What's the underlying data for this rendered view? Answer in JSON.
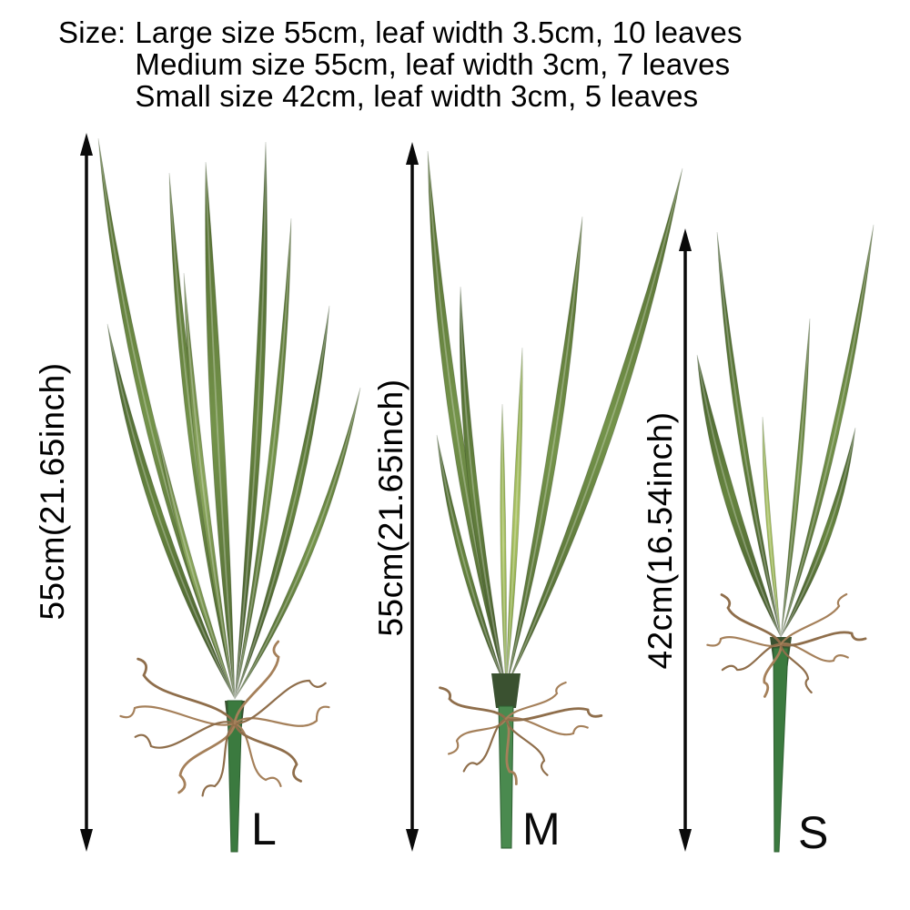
{
  "header": {
    "prefix": "Size:",
    "lines": [
      "Large size 55cm, leaf width 3.5cm, 10 leaves",
      "Medium size 55cm, leaf width 3cm, 7 leaves",
      "Small size 42cm, leaf width 3cm, 5 leaves"
    ]
  },
  "measurements": {
    "large": "55cm(21.65inch)",
    "medium": "55cm(21.65inch)",
    "small": "42cm(16.54inch)"
  },
  "plants": {
    "large": {
      "label": "L",
      "size_cm": "55cm",
      "size_inch": "21.65inch",
      "leaf_width": "3.5cm",
      "leaf_count": "10 leaves"
    },
    "medium": {
      "label": "M",
      "size_cm": "55cm",
      "size_inch": "21.65inch",
      "leaf_width": "3cm",
      "leaf_count": "7 leaves"
    },
    "small": {
      "label": "S",
      "size_cm": "42cm",
      "size_inch": "16.54inch",
      "leaf_width": "3cm",
      "leaf_count": "5 leaves"
    }
  },
  "colors": {
    "background": "#ffffff",
    "text": "#000000",
    "arrow": "#0a0a0a",
    "leaf_dark": "#47602f",
    "leaf_mid": "#74934a",
    "leaf_light": "#a9c162",
    "stem_green": "#3b7a3f",
    "root_brown": "#8f6e4b"
  }
}
